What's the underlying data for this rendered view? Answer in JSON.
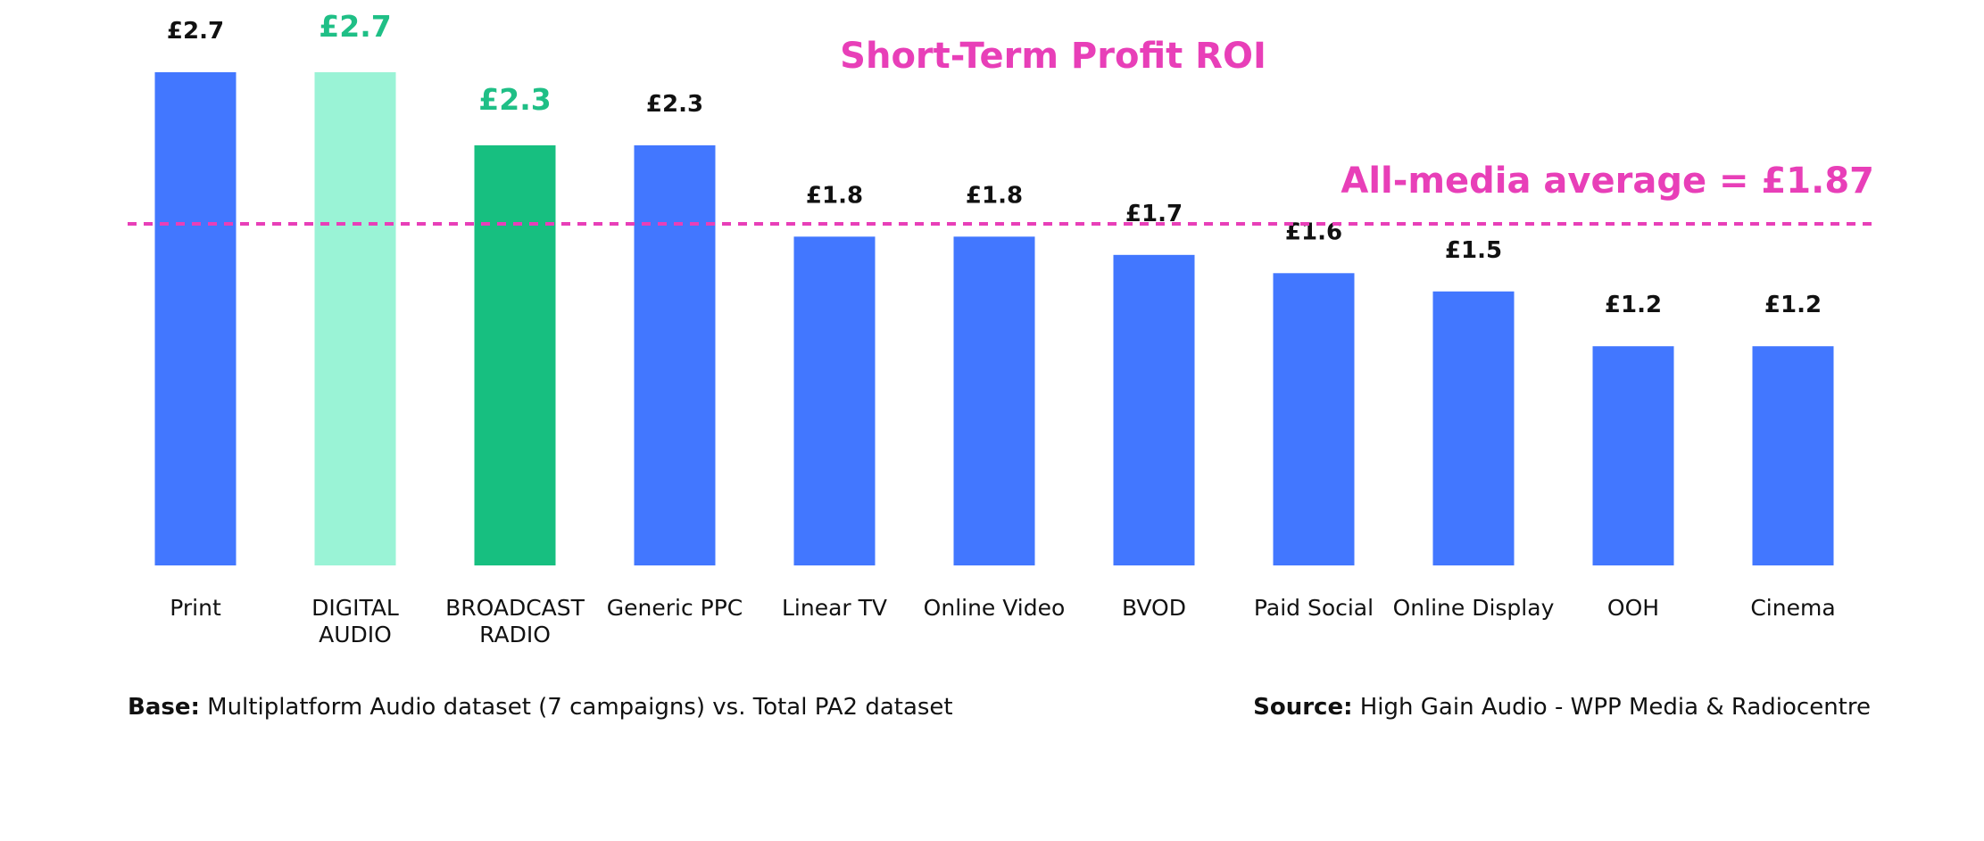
{
  "chart_data": {
    "type": "bar",
    "title": "Short-Term Profit ROI",
    "categories": [
      [
        "Print"
      ],
      [
        "DIGITAL",
        "AUDIO"
      ],
      [
        "BROADCAST",
        "RADIO"
      ],
      [
        "Generic PPC"
      ],
      [
        "Linear TV"
      ],
      [
        "Online Video"
      ],
      [
        "BVOD"
      ],
      [
        "Paid Social"
      ],
      [
        "Online Display"
      ],
      [
        "OOH"
      ],
      [
        "Cinema"
      ]
    ],
    "values": [
      2.7,
      2.7,
      2.3,
      2.3,
      1.8,
      1.8,
      1.7,
      1.6,
      1.5,
      1.2,
      1.2
    ],
    "value_labels": [
      "£2.7",
      "£2.7",
      "£2.3",
      "£2.3",
      "£1.8",
      "£1.8",
      "£1.7",
      "£1.6",
      "£1.5",
      "£1.2",
      "£1.2"
    ],
    "bar_colors": [
      "#4277FF",
      "#9AF3D6",
      "#17BF80",
      "#4277FF",
      "#4277FF",
      "#4277FF",
      "#4277FF",
      "#4277FF",
      "#4277FF",
      "#4277FF",
      "#4277FF"
    ],
    "highlight_label_color": "#1FBF86",
    "default_label_color": "#111111",
    "highlighted": [
      1,
      2
    ],
    "ylim": [
      0,
      2.7
    ],
    "grid": false,
    "reference_line": {
      "value": 1.87,
      "label": "All-media average = £1.87",
      "color": "#E83FB8",
      "style": "dashed"
    },
    "title_color": "#E83FB8"
  },
  "footer": {
    "base_label": "Base:",
    "base_text": "Multiplatform Audio dataset (7 campaigns) vs. Total PA2 dataset",
    "source_label": "Source:",
    "source_text": "High Gain Audio - WPP Media & Radiocentre"
  }
}
